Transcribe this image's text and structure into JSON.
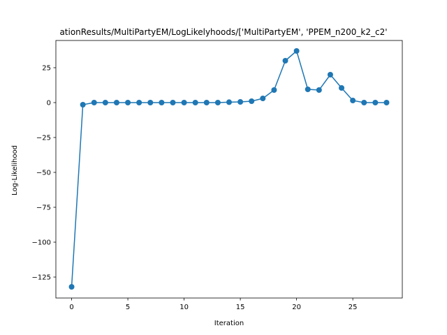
{
  "chart_data": {
    "type": "line",
    "title": "ationResults/MultiPartyEM/LogLikelyhoods/['MultiPartyEM', 'PPEM_n200_k2_c2'",
    "xlabel": "Iteration",
    "ylabel": "Log-Likelihood",
    "xlim": [
      -1.4,
      29.4
    ],
    "ylim": [
      -140,
      44.5
    ],
    "xticks": [
      0,
      5,
      10,
      15,
      20,
      25
    ],
    "yticks": [
      -125,
      -100,
      -75,
      -50,
      -25,
      0,
      25
    ],
    "xtick_labels": [
      "0",
      "5",
      "10",
      "15",
      "20",
      "25"
    ],
    "ytick_labels": [
      "−125",
      "−100",
      "−75",
      "−50",
      "−25",
      "0",
      "25"
    ],
    "grid": false,
    "legend": "none",
    "series": [
      {
        "color": "#1f77b4",
        "marker": "circle",
        "x": [
          0,
          1,
          2,
          3,
          4,
          5,
          6,
          7,
          8,
          9,
          10,
          11,
          12,
          13,
          14,
          15,
          16,
          17,
          18,
          19,
          20,
          21,
          22,
          23,
          24,
          25,
          26,
          27,
          28
        ],
        "y": [
          -132,
          -1.5,
          0,
          0,
          0,
          0,
          0,
          0,
          0,
          0,
          0,
          0,
          0,
          0,
          0.3,
          0.5,
          1,
          3,
          9,
          30,
          37,
          9.5,
          9,
          20,
          10.5,
          1.5,
          0,
          0,
          0
        ]
      }
    ]
  }
}
